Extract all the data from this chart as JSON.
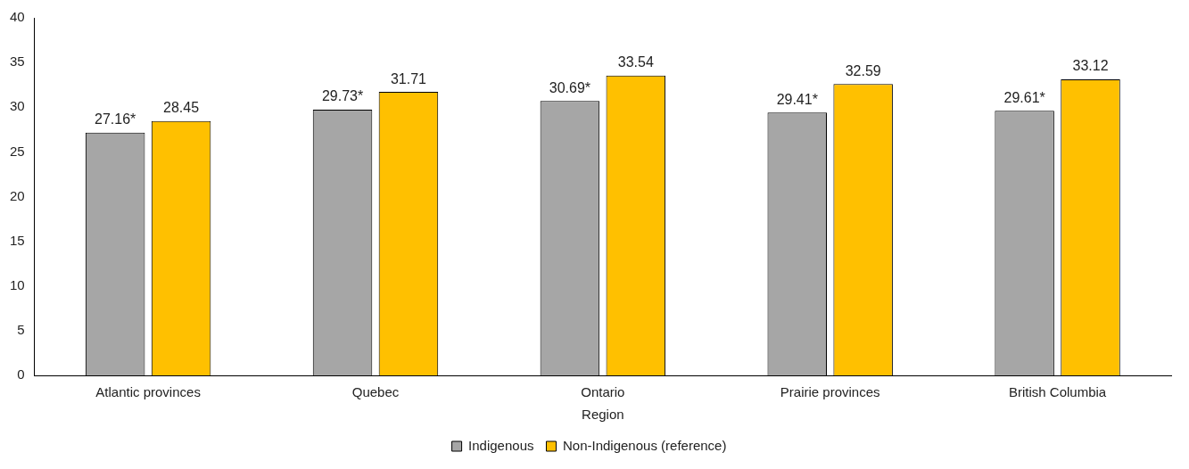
{
  "chart_data": {
    "type": "bar",
    "xlabel": "Region",
    "categories": [
      "Atlantic provinces",
      "Quebec",
      "Ontario",
      "Prairie provinces",
      "British Columbia"
    ],
    "series": [
      {
        "name": "Indigenous",
        "color": "#a6a6a6",
        "values": [
          27.16,
          29.73,
          30.69,
          29.41,
          29.61
        ],
        "value_labels": [
          "27.16*",
          "29.73*",
          "30.69*",
          "29.41*",
          "29.61*"
        ]
      },
      {
        "name": "Non-Indigenous (reference)",
        "color": "#ffc000",
        "values": [
          28.45,
          31.71,
          33.54,
          32.59,
          33.12
        ],
        "value_labels": [
          "28.45",
          "31.71",
          "33.54",
          "32.59",
          "33.12"
        ]
      }
    ],
    "ylim": [
      0,
      40
    ],
    "yticks": [
      0,
      5,
      10,
      15,
      20,
      25,
      30,
      35,
      40
    ],
    "grid": false,
    "legend": "bottom"
  }
}
